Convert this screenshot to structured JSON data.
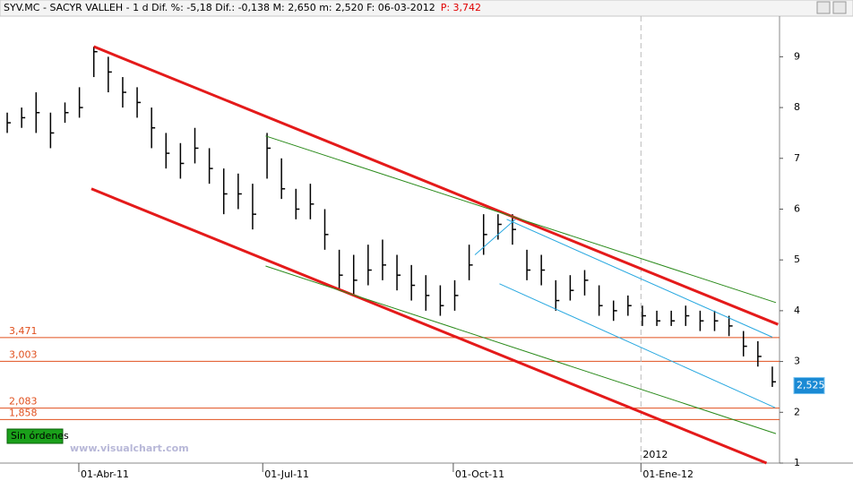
{
  "chart_data": {
    "type": "hlc",
    "title": "SYV.MC - SACYR VALLEH - 1 d Dif. %: -5,18 Dif.: -0,138 M: 2,650 m: 2,520 F: 06-03-2012",
    "price_label": "P: 3,742",
    "watermark": "www.visualchart.com",
    "orders_button": "Sin órdenes",
    "last_price": {
      "value": 2.525,
      "label": "2,525"
    },
    "color": "#000000",
    "categories": [
      null,
      null,
      null,
      null,
      null,
      null,
      null,
      null,
      null,
      null,
      null,
      null,
      null,
      null,
      null,
      null,
      null,
      null,
      null,
      null,
      null,
      null,
      null,
      null,
      null,
      null,
      null,
      null,
      null,
      null,
      null,
      null,
      null,
      null,
      null,
      null,
      null,
      null,
      null,
      null,
      null,
      null,
      null,
      null,
      null,
      null,
      null,
      null,
      null,
      null,
      null,
      null,
      null,
      null
    ],
    "values": [
      7.7,
      7.8,
      7.9,
      7.5,
      7.9,
      8.0,
      9.1,
      8.7,
      8.3,
      8.1,
      7.6,
      7.1,
      6.9,
      7.2,
      6.8,
      6.3,
      6.3,
      5.9,
      7.2,
      6.4,
      6.0,
      6.1,
      5.5,
      4.7,
      4.6,
      4.8,
      4.9,
      4.7,
      4.5,
      4.3,
      4.1,
      4.3,
      4.9,
      5.5,
      5.7,
      5.6,
      4.8,
      4.8,
      4.2,
      4.4,
      4.6,
      4.1,
      4.0,
      4.1,
      3.9,
      3.8,
      3.8,
      3.9,
      3.8,
      3.8,
      3.7,
      3.3,
      3.1,
      2.6
    ],
    "high": [
      7.9,
      8.0,
      8.3,
      7.9,
      8.1,
      8.4,
      9.2,
      9.0,
      8.6,
      8.4,
      8.0,
      7.5,
      7.3,
      7.6,
      7.2,
      6.8,
      6.7,
      6.5,
      7.5,
      7.0,
      6.4,
      6.5,
      6.0,
      5.2,
      5.1,
      5.3,
      5.4,
      5.1,
      4.9,
      4.7,
      4.5,
      4.6,
      5.3,
      5.9,
      5.9,
      5.9,
      5.2,
      5.1,
      4.6,
      4.7,
      4.8,
      4.5,
      4.2,
      4.3,
      4.1,
      4.0,
      4.0,
      4.1,
      4.0,
      4.0,
      3.9,
      3.6,
      3.4,
      2.9
    ],
    "low": [
      7.5,
      7.6,
      7.5,
      7.2,
      7.7,
      7.8,
      8.6,
      8.3,
      8.0,
      7.8,
      7.2,
      6.8,
      6.6,
      6.9,
      6.5,
      5.9,
      6.0,
      5.6,
      6.6,
      6.2,
      5.8,
      5.8,
      5.2,
      4.4,
      4.3,
      4.5,
      4.6,
      4.4,
      4.2,
      4.0,
      3.9,
      4.0,
      4.6,
      5.1,
      5.4,
      5.3,
      4.6,
      4.5,
      4.0,
      4.2,
      4.3,
      3.9,
      3.8,
      3.9,
      3.7,
      3.7,
      3.7,
      3.7,
      3.6,
      3.6,
      3.5,
      3.1,
      2.9,
      2.5
    ],
    "xlim": [
      -0.5,
      53.5
    ],
    "ylim": [
      1,
      9.8
    ],
    "yticks": [
      1,
      2,
      3,
      4,
      5,
      6,
      7,
      8,
      9
    ],
    "xticks": [
      {
        "value": 4.96,
        "label": "01-Abr-11"
      },
      {
        "value": 17.7,
        "label": "01-Jul-11"
      },
      {
        "value": 30.9,
        "label": "01-Oct-11"
      },
      {
        "value": 43.9,
        "label": "01-Ene-12"
      }
    ],
    "year_separator": {
      "value": 43.9,
      "label": "2012"
    },
    "levels": [
      {
        "value": 3.471,
        "label": "3,471"
      },
      {
        "value": 3.003,
        "label": "3,003"
      },
      {
        "value": 2.083,
        "label": "2,083"
      },
      {
        "value": 1.858,
        "label": "1,858"
      }
    ],
    "level_color": "#e0501e",
    "trendlines": [
      {
        "color": "#e41a1a",
        "x": [
          6.0,
          53.4
        ],
        "y": [
          9.2,
          3.73
        ]
      },
      {
        "color": "#e41a1a",
        "x": [
          5.83,
          52.6
        ],
        "y": [
          6.4,
          1.0
        ]
      },
      {
        "color": "#2a8a1a",
        "x": [
          17.9,
          53.25
        ],
        "y": [
          7.44,
          4.16
        ]
      },
      {
        "color": "#2a8a1a",
        "x": [
          17.9,
          53.25
        ],
        "y": [
          4.88,
          1.58
        ]
      },
      {
        "color": "#28a8e0",
        "x": [
          34.6,
          53.0
        ],
        "y": [
          5.8,
          3.48
        ]
      },
      {
        "color": "#28a8e0",
        "x": [
          34.1,
          53.2
        ],
        "y": [
          4.53,
          2.09
        ]
      },
      {
        "color": "#28a8e0",
        "x": [
          32.4,
          35.2
        ],
        "y": [
          5.1,
          5.8
        ]
      }
    ]
  }
}
